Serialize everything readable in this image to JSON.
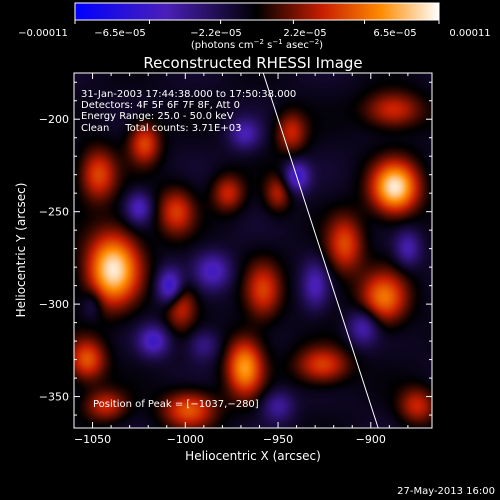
{
  "chart_data": {
    "type": "heatmap",
    "title": "Reconstructed RHESSI Image",
    "xlabel": "Heliocentric X (arcsec)",
    "ylabel": "Heliocentric Y (arcsec)",
    "xlim": [
      -1060,
      -867
    ],
    "ylim": [
      -367,
      -175
    ],
    "x_ticks": [
      -1050,
      -1000,
      -950,
      -900
    ],
    "x_tick_labels": [
      "−1050",
      "−1000",
      "−950",
      "−900"
    ],
    "y_ticks": [
      -200,
      -250,
      -300,
      -350
    ],
    "y_tick_labels": [
      "−200",
      "−250",
      "−300",
      "−350"
    ],
    "colorbar": {
      "range": [
        -0.00011,
        0.00011
      ],
      "ticks": [
        -0.00011,
        -6.5e-05,
        -2.2e-05,
        2.2e-05,
        6.5e-05,
        0.00011
      ],
      "tick_labels": [
        "−0.00011",
        "−6.5e−05",
        "−2.2e−05",
        "2.2e−05",
        "6.5e−05",
        "0.00011"
      ],
      "units_prefix": "(photons cm",
      "units_exp1": "−2",
      "units_mid": " s",
      "units_exp2": "−1",
      "units_mid2": " asec",
      "units_exp3": "−2",
      "units_suffix": ")"
    },
    "annotations": {
      "time_range": "31-Jan-2003 17:44:38.000 to 17:50:38.000",
      "detectors": "Detectors: 4F 5F 6F 7F 8F, Att 0",
      "energy_range": "Energy Range: 25.0 - 50.0 keV",
      "method": "Clean     Total counts: 3.71E+03",
      "peak": "Position of Peak = [−1037,−280]"
    },
    "limb_line": [
      [
        -958,
        -175
      ],
      [
        -896,
        -367
      ]
    ],
    "sources": [
      {
        "x": -1039,
        "y": -281,
        "value": 1.0,
        "sx": 10,
        "sy": 14
      },
      {
        "x": -887,
        "y": -237,
        "value": 1.0,
        "sx": 9,
        "sy": 10
      },
      {
        "x": -968,
        "y": -334,
        "value": 0.78,
        "sx": 7,
        "sy": 11
      },
      {
        "x": -893,
        "y": -297,
        "value": 0.68,
        "sx": 9,
        "sy": 10
      },
      {
        "x": -998,
        "y": -357,
        "value": 0.6,
        "sx": 10,
        "sy": 7
      },
      {
        "x": -1022,
        "y": -213,
        "value": 0.55,
        "sx": 6,
        "sy": 8
      },
      {
        "x": -1005,
        "y": -250,
        "value": 0.5,
        "sx": 7,
        "sy": 9
      },
      {
        "x": -1003,
        "y": -300,
        "value": 0.5,
        "sx": 6,
        "sy": 9
      },
      {
        "x": -958,
        "y": -293,
        "value": 0.5,
        "sx": 7,
        "sy": 11
      },
      {
        "x": -943,
        "y": -207,
        "value": 0.45,
        "sx": 6,
        "sy": 8
      },
      {
        "x": -914,
        "y": -268,
        "value": 0.55,
        "sx": 7,
        "sy": 11
      },
      {
        "x": -926,
        "y": -333,
        "value": 0.55,
        "sx": 10,
        "sy": 7
      },
      {
        "x": -977,
        "y": -240,
        "value": 0.45,
        "sx": 6,
        "sy": 7
      },
      {
        "x": -888,
        "y": -195,
        "value": 0.5,
        "sx": 11,
        "sy": 7
      },
      {
        "x": -1047,
        "y": -230,
        "value": 0.55,
        "sx": 7,
        "sy": 10
      },
      {
        "x": -1053,
        "y": -330,
        "value": 0.6,
        "sx": 7,
        "sy": 8
      },
      {
        "x": -950,
        "y": -240,
        "value": 0.4,
        "sx": 5,
        "sy": 7
      },
      {
        "x": -1043,
        "y": -355,
        "value": 0.45,
        "sx": 8,
        "sy": 6
      },
      {
        "x": -875,
        "y": -355,
        "value": 0.45,
        "sx": 7,
        "sy": 7
      },
      {
        "x": -1008,
        "y": -291,
        "value": -0.7,
        "sx": 5,
        "sy": 7
      },
      {
        "x": -1017,
        "y": -320,
        "value": -0.5,
        "sx": 6,
        "sy": 6
      },
      {
        "x": -940,
        "y": -231,
        "value": -0.55,
        "sx": 5,
        "sy": 6
      },
      {
        "x": -1025,
        "y": -248,
        "value": -0.45,
        "sx": 5,
        "sy": 6
      },
      {
        "x": -985,
        "y": -282,
        "value": -0.45,
        "sx": 7,
        "sy": 7
      },
      {
        "x": -968,
        "y": -208,
        "value": -0.4,
        "sx": 6,
        "sy": 6
      },
      {
        "x": -904,
        "y": -312,
        "value": -0.45,
        "sx": 6,
        "sy": 7
      },
      {
        "x": -930,
        "y": -290,
        "value": -0.4,
        "sx": 5,
        "sy": 9
      },
      {
        "x": -880,
        "y": -270,
        "value": -0.4,
        "sx": 5,
        "sy": 7
      },
      {
        "x": -950,
        "y": -355,
        "value": -0.35,
        "sx": 6,
        "sy": 6
      },
      {
        "x": -1050,
        "y": -300,
        "value": -0.25,
        "sx": 4,
        "sy": 6
      },
      {
        "x": -990,
        "y": -322,
        "value": -0.3,
        "sx": 6,
        "sy": 6
      }
    ],
    "grid": false,
    "legend": "none"
  },
  "footer": {
    "timestamp": "27-May-2013 16:00"
  }
}
